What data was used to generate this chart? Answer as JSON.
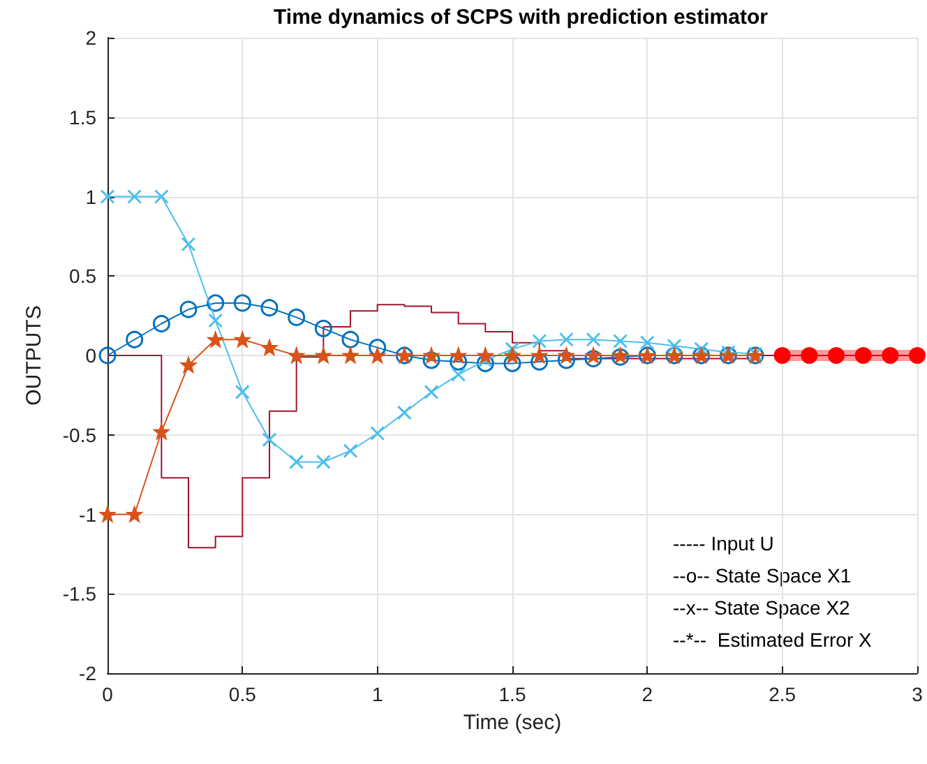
{
  "chart_data": {
    "type": "line",
    "title": "Time dynamics of SCPS with prediction estimator",
    "xlabel": "Time (sec)",
    "ylabel": "OUTPUTS",
    "xlim": [
      0,
      3
    ],
    "xticks": [
      0,
      0.5,
      1,
      1.5,
      2,
      2.5,
      3
    ],
    "ylim": [
      -2,
      2
    ],
    "yticks": [
      -2,
      -1.5,
      -1,
      -0.5,
      0,
      0.5,
      1,
      1.5,
      2
    ],
    "grid": true,
    "annotations": [
      "----- Input U",
      "--o-- State Space X1",
      "--x-- State Space X2",
      "--*--  Estimated Error X"
    ],
    "series": [
      {
        "type": "step",
        "color": "#a2142f",
        "marker": "none",
        "x": [
          0,
          0.1,
          0.2,
          0.3,
          0.4,
          0.5,
          0.6,
          0.7,
          0.8,
          0.9,
          1.0,
          1.1,
          1.2,
          1.3,
          1.4,
          1.5,
          1.6,
          1.7,
          1.8,
          1.9,
          2.0,
          2.1,
          2.2,
          2.3,
          2.4,
          2.5,
          2.6,
          2.7,
          2.8,
          2.9,
          3.0
        ],
        "values": [
          0,
          0,
          -0.77,
          -1.21,
          -1.14,
          -0.77,
          -0.35,
          -0.01,
          0.18,
          0.28,
          0.32,
          0.31,
          0.27,
          0.2,
          0.15,
          0.08,
          0.03,
          -0.02,
          -0.02,
          -0.02,
          -0.02,
          -0.02,
          -0.02,
          -0.02,
          0,
          0,
          0,
          0,
          0,
          0,
          0
        ]
      },
      {
        "color": "#0072bd",
        "marker": "circle",
        "x": [
          0,
          0.1,
          0.2,
          0.3,
          0.4,
          0.5,
          0.6,
          0.7,
          0.8,
          0.9,
          1.0,
          1.1,
          1.2,
          1.3,
          1.4,
          1.5,
          1.6,
          1.7,
          1.8,
          1.9,
          2.0,
          2.1,
          2.2,
          2.3,
          2.4
        ],
        "values": [
          0,
          0.1,
          0.2,
          0.29,
          0.33,
          0.33,
          0.3,
          0.24,
          0.17,
          0.1,
          0.05,
          0,
          -0.03,
          -0.04,
          -0.05,
          -0.05,
          -0.04,
          -0.03,
          -0.02,
          -0.01,
          0,
          0,
          0,
          0,
          0
        ]
      },
      {
        "color": "#4dbeee",
        "marker": "cross",
        "x": [
          0,
          0.1,
          0.2,
          0.3,
          0.4,
          0.5,
          0.6,
          0.7,
          0.8,
          0.9,
          1.0,
          1.1,
          1.2,
          1.3,
          1.4,
          1.5,
          1.6,
          1.7,
          1.8,
          1.9,
          2.0,
          2.1,
          2.2,
          2.3,
          2.4
        ],
        "values": [
          1,
          1,
          1,
          0.7,
          0.22,
          -0.23,
          -0.53,
          -0.67,
          -0.67,
          -0.6,
          -0.49,
          -0.36,
          -0.23,
          -0.12,
          -0.03,
          0.04,
          0.09,
          0.1,
          0.1,
          0.09,
          0.08,
          0.06,
          0.04,
          0.02,
          0.01
        ]
      },
      {
        "color": "#d95319",
        "marker": "star",
        "x": [
          0,
          0.1,
          0.2,
          0.3,
          0.4,
          0.5,
          0.6,
          0.7,
          0.8,
          0.9,
          1.0,
          1.1,
          1.2,
          1.3,
          1.4,
          1.5,
          1.6,
          1.7,
          1.8,
          1.9,
          2.0,
          2.1,
          2.2,
          2.3,
          2.4
        ],
        "values": [
          -1,
          -1,
          -0.48,
          -0.06,
          0.1,
          0.1,
          0.05,
          0,
          0,
          0,
          0,
          0,
          0,
          0,
          0,
          0,
          0,
          0,
          0,
          0,
          0,
          0,
          0,
          0,
          0
        ]
      },
      {
        "color": "#ff0000",
        "marker": "circle",
        "x": [
          2.5,
          2.6,
          2.7,
          2.8,
          2.9,
          3.0
        ],
        "values": [
          0,
          0,
          0,
          0,
          0,
          0
        ]
      }
    ]
  }
}
